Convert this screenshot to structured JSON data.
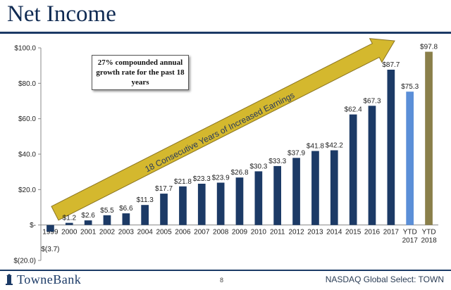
{
  "slide": {
    "title": "Net Income",
    "page_number": "8",
    "footer_right": "NASDAQ Global Select: TOWN",
    "logo_text": "TowneBank"
  },
  "callout": {
    "box_text": "27% compounded annual growth rate for the past 18 years",
    "arrow_text": "18 Consecutive Years of Increased Earnings"
  },
  "colors": {
    "bar_dark": "#1c3a66",
    "bar_ytd2017": "#5b8fd8",
    "bar_ytd2018": "#8a7f4a",
    "arrow_fill": "#d4b82e",
    "title": "#0f2a52"
  },
  "chart_data": {
    "type": "bar",
    "categories": [
      "1999",
      "2000",
      "2001",
      "2002",
      "2003",
      "2004",
      "2005",
      "2006",
      "2007",
      "2008",
      "2009",
      "2010",
      "2011",
      "2012",
      "2013",
      "2014",
      "2015",
      "2016",
      "2017",
      "YTD 2017",
      "YTD 2018"
    ],
    "values": [
      -3.7,
      1.2,
      2.6,
      5.5,
      6.6,
      11.3,
      17.7,
      21.8,
      23.3,
      23.9,
      26.8,
      30.3,
      33.3,
      37.9,
      41.8,
      42.2,
      62.4,
      67.3,
      87.7,
      75.3,
      97.8
    ],
    "data_labels": [
      "$(3.7)",
      "$1.2",
      "$2.6",
      "$5.5",
      "$6.6",
      "$11.3",
      "$17.7",
      "$21.8",
      "$23.3",
      "$23.9",
      "$26.8",
      "$30.3",
      "$33.3",
      "$37.9",
      "$41.8",
      "$42.2",
      "$62.4",
      "$67.3",
      "$87.7",
      "$75.3",
      "$97.8"
    ],
    "ylim": [
      -20,
      100
    ],
    "yticks": [
      -20,
      0,
      20,
      40,
      60,
      80,
      100
    ],
    "ytick_labels": [
      "$(20.0)",
      "$-",
      "$20.0",
      "$40.0",
      "$60.0",
      "$80.0",
      "$100.0"
    ],
    "grid": false,
    "legend": "none",
    "title": "",
    "xlabel": "",
    "ylabel": ""
  }
}
